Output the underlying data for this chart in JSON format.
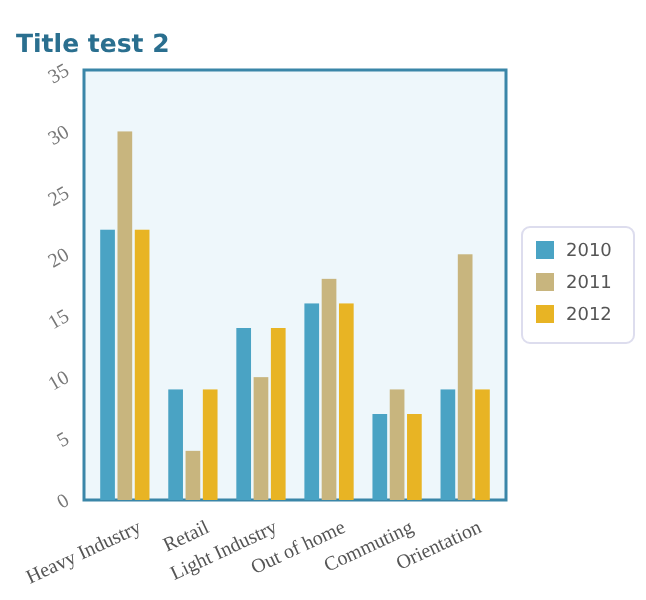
{
  "chart_data": {
    "type": "bar",
    "title": "Title test 2",
    "categories": [
      "Heavy Industry",
      "Retail",
      "Light Industry",
      "Out of home",
      "Commuting",
      "Orientation"
    ],
    "series": [
      {
        "name": "2010",
        "color": "#4aa3c4",
        "values": [
          22,
          9,
          14,
          16,
          7,
          9
        ]
      },
      {
        "name": "2011",
        "color": "#c8b57e",
        "values": [
          30,
          4,
          10,
          18,
          9,
          20
        ]
      },
      {
        "name": "2012",
        "color": "#e8b424",
        "values": [
          22,
          9,
          14,
          16,
          7,
          9
        ]
      }
    ],
    "ylim": [
      0,
      35
    ],
    "yticks": [
      0,
      5,
      10,
      15,
      20,
      25,
      30,
      35
    ],
    "legend": "right"
  }
}
